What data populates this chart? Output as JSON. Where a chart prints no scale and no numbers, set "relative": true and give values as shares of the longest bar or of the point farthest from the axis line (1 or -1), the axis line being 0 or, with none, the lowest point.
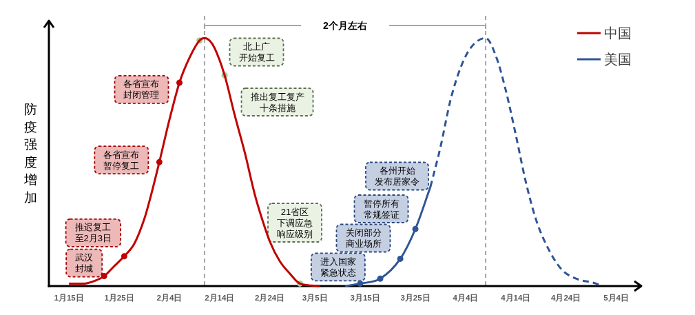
{
  "chart_data": {
    "type": "line",
    "relative": true,
    "ylabel": "防疫强度增加",
    "legend": "top right",
    "xlim": [
      "--01-11",
      "--05-09"
    ],
    "xticks": [
      {
        "value": "--01-15",
        "label": "1月15日"
      },
      {
        "value": "--01-25",
        "label": "1月25日"
      },
      {
        "value": "--02-04",
        "label": "2月4日"
      },
      {
        "value": "--02-14",
        "label": "2月14日"
      },
      {
        "value": "--02-24",
        "label": "2月24日"
      },
      {
        "value": "--03-05",
        "label": "3月5日"
      },
      {
        "value": "--03-15",
        "label": "3月15日"
      },
      {
        "value": "--03-25",
        "label": "3月25日"
      },
      {
        "value": "--04-04",
        "label": "4月4日"
      },
      {
        "value": "--04-14",
        "label": "4月14日"
      },
      {
        "value": "--04-24",
        "label": "4月24日"
      },
      {
        "value": "--05-04",
        "label": "5月4日"
      }
    ],
    "series": [
      {
        "name": "中国",
        "color": "#c00000",
        "line_style": "solid",
        "x": [
          "--01-15",
          "--01-18",
          "--01-20",
          "--01-22",
          "--01-24",
          "--01-26",
          "--01-28",
          "--01-30",
          "--01-31",
          "--02-02",
          "--02-04",
          "--02-06",
          "--02-08",
          "--02-10",
          "--02-11",
          "--02-12",
          "--02-13",
          "--02-15",
          "--02-17",
          "--02-19",
          "--02-21",
          "--02-22",
          "--02-24",
          "--02-26",
          "--02-28",
          "--03-02",
          "--03-06"
        ],
        "values": [
          0.01,
          0.01,
          0.02,
          0.04,
          0.08,
          0.12,
          0.17,
          0.27,
          0.34,
          0.5,
          0.67,
          0.82,
          0.92,
          0.99,
          1.0,
          0.99,
          0.96,
          0.85,
          0.69,
          0.54,
          0.37,
          0.3,
          0.18,
          0.1,
          0.05,
          0.01,
          0.0
        ]
      },
      {
        "name": "美国",
        "color": "#2f5597",
        "line_style": "solid",
        "x": [
          "--03-11",
          "--03-14",
          "--03-18",
          "--03-22",
          "--03-25",
          "--03-28"
        ],
        "values": [
          0.0,
          0.01,
          0.03,
          0.11,
          0.23,
          0.4
        ]
      },
      {
        "color": "#2f5597",
        "line_style": "dashed",
        "x": [
          "--03-28",
          "--03-30",
          "--04-01",
          "--04-03",
          "--04-05",
          "--04-08",
          "--04-10",
          "--04-12",
          "--04-14",
          "--04-16",
          "--04-18",
          "--04-20",
          "--04-23",
          "--04-26",
          "--04-30",
          "--05-01"
        ],
        "values": [
          0.4,
          0.56,
          0.75,
          0.88,
          0.96,
          1.0,
          0.93,
          0.79,
          0.61,
          0.42,
          0.27,
          0.17,
          0.07,
          0.03,
          0.01,
          0.0
        ]
      },
      {
        "type": "scatter",
        "marker": "circle",
        "x": [
          "--01-22",
          "--01-26",
          "--02-02",
          "--02-06",
          "--02-10",
          "--02-15",
          "--03-02"
        ],
        "values": [
          0.04,
          0.12,
          0.5,
          0.82,
          0.99,
          0.85,
          0.01
        ],
        "colors": [
          "#c00000",
          "#c00000",
          "#c00000",
          "#c00000",
          "#a9c98f",
          "#a9c98f",
          "#a9c98f"
        ]
      },
      {
        "type": "scatter",
        "marker": "circle",
        "color": "#2f5597",
        "x": [
          "--03-14",
          "--03-18",
          "--03-22",
          "--03-25"
        ],
        "values": [
          0.01,
          0.03,
          0.11,
          0.23
        ]
      }
    ],
    "ref_lines": [
      {
        "axis": "x",
        "value": "--02-11",
        "color": "#a6a6a6",
        "line_style": "dashed"
      },
      {
        "axis": "x",
        "value": "--04-08",
        "color": "#a6a6a6",
        "line_style": "dashed"
      }
    ],
    "annotations": [
      "2个月左右",
      {
        "text": "武汉封城",
        "x": "--01-22",
        "y": 0.04
      },
      {
        "text": "推迟复工至2月3日",
        "x": "--01-26",
        "y": 0.12
      },
      {
        "text": "各省宣布暂停复工",
        "x": "--02-02",
        "y": 0.5
      },
      {
        "text": "各省宣布封闭管理",
        "x": "--02-06",
        "y": 0.82
      },
      "北上广开始复工",
      "推出复工复产十条措施",
      "21省区下调应急响应级别",
      {
        "text": "进入国家紧急状态",
        "x": "--03-14",
        "y": 0.01
      },
      "关闭部分商业场所",
      "暂停所有常规签证",
      "各州开始发布居家令"
    ]
  }
}
